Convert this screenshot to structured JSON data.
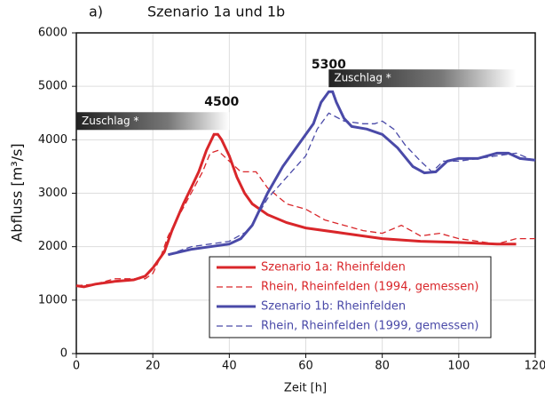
{
  "chart_data": {
    "type": "line",
    "panel": "a)",
    "title": "Szenario 1a und 1b",
    "xlabel": "Zeit [h]",
    "ylabel": "Abfluss [m³/s]",
    "xlim": [
      0,
      120
    ],
    "xticks": [
      0,
      20,
      40,
      60,
      80,
      100,
      120
    ],
    "ylim": [
      0,
      6000
    ],
    "yticks": [
      0,
      1000,
      2000,
      3000,
      4000,
      5000,
      6000
    ],
    "grid": true,
    "legend": "lower right",
    "annotations": [
      {
        "text": "4500",
        "x": 38,
        "y": 4700
      },
      {
        "text": "5300",
        "x": 66,
        "y": 5400
      }
    ],
    "bands": [
      {
        "text": "Zuschlag *",
        "x": [
          0,
          40
        ],
        "y": 4350
      },
      {
        "text": "Zuschlag *",
        "x": [
          66,
          115
        ],
        "y": 5150
      }
    ],
    "series": [
      {
        "name": "Szenario 1a: Rheinfelden",
        "color": "#d9262a",
        "dash": false,
        "x": [
          0,
          2,
          5,
          10,
          15,
          18,
          20,
          23,
          25,
          28,
          30,
          32,
          34,
          36,
          37,
          38,
          40,
          42,
          44,
          46,
          50,
          55,
          60,
          70,
          80,
          90,
          100,
          110,
          115
        ],
        "values": [
          1270,
          1250,
          1300,
          1350,
          1380,
          1450,
          1600,
          1900,
          2300,
          2800,
          3100,
          3400,
          3800,
          4100,
          4100,
          4000,
          3700,
          3300,
          3000,
          2800,
          2600,
          2450,
          2350,
          2250,
          2150,
          2100,
          2080,
          2050,
          2050
        ]
      },
      {
        "name": "Rhein, Rheinfelden (1994, gemessen)",
        "color": "#d9262a",
        "dash": true,
        "x": [
          0,
          5,
          10,
          15,
          18,
          20,
          22,
          24,
          27,
          30,
          33,
          35,
          37,
          40,
          43,
          47,
          50,
          55,
          60,
          65,
          70,
          75,
          80,
          85,
          90,
          95,
          100,
          105,
          110,
          115,
          120
        ],
        "values": [
          1270,
          1300,
          1400,
          1400,
          1400,
          1500,
          1800,
          2200,
          2600,
          3000,
          3400,
          3750,
          3800,
          3600,
          3400,
          3400,
          3100,
          2800,
          2700,
          2500,
          2400,
          2300,
          2250,
          2400,
          2200,
          2250,
          2150,
          2100,
          2050,
          2150,
          2150
        ]
      },
      {
        "name": "Szenario 1b: Rheinfelden",
        "color": "#4a4aa8",
        "dash": false,
        "x": [
          24,
          30,
          35,
          40,
          43,
          46,
          50,
          54,
          58,
          62,
          64,
          66,
          67,
          68,
          70,
          72,
          76,
          80,
          84,
          88,
          91,
          94,
          97,
          100,
          105,
          110,
          113,
          116,
          120
        ],
        "values": [
          1850,
          1950,
          2000,
          2050,
          2150,
          2400,
          3000,
          3500,
          3900,
          4300,
          4700,
          4900,
          4900,
          4700,
          4400,
          4250,
          4200,
          4100,
          3850,
          3500,
          3380,
          3400,
          3600,
          3650,
          3650,
          3750,
          3750,
          3650,
          3620
        ]
      },
      {
        "name": "Rhein, Rheinfelden (1999, gemessen)",
        "color": "#4a4aa8",
        "dash": true,
        "x": [
          24,
          30,
          35,
          40,
          45,
          50,
          55,
          60,
          63,
          66,
          70,
          75,
          78,
          80,
          83,
          86,
          90,
          93,
          96,
          100,
          105,
          110,
          115,
          120
        ],
        "values": [
          1850,
          2000,
          2050,
          2100,
          2300,
          2900,
          3300,
          3700,
          4200,
          4500,
          4350,
          4300,
          4300,
          4350,
          4200,
          3900,
          3600,
          3400,
          3600,
          3600,
          3650,
          3700,
          3750,
          3600
        ]
      }
    ]
  }
}
